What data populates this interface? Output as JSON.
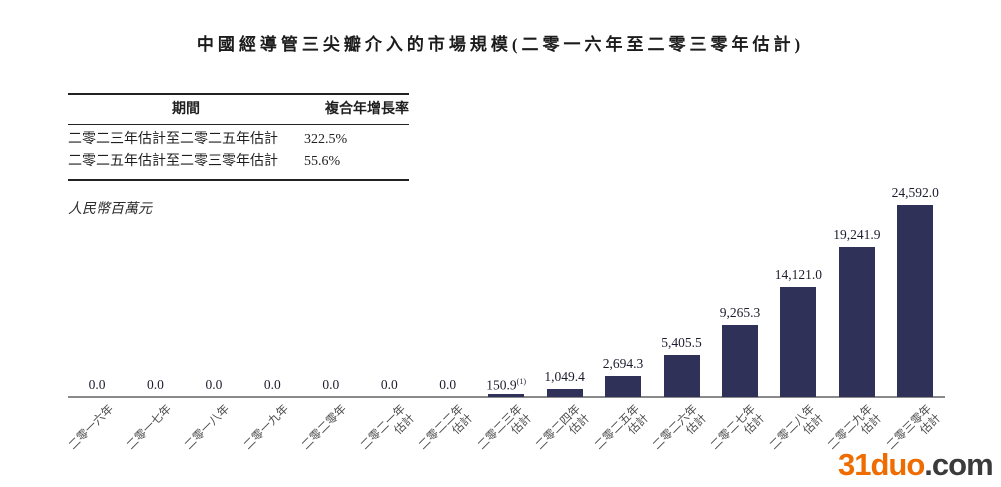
{
  "page": {
    "title": "中國經導管三尖瓣介入的市場規模(二零一六年至二零三零年估計)"
  },
  "cagr_table": {
    "headers": [
      "期間",
      "複合年增長率"
    ],
    "rows": [
      {
        "period": "二零二三年估計至二零二五年估計",
        "cagr": "322.5%"
      },
      {
        "period": "二零二五年估計至二零三零年估計",
        "cagr": "55.6%"
      }
    ]
  },
  "chart_data": {
    "type": "bar",
    "title": "中國經導管三尖瓣介入的市場規模(二零一六年至二零三零年估計)",
    "ylabel": "人民幣百萬元",
    "xlabel": "",
    "ylim": [
      0,
      24592
    ],
    "grid": false,
    "legend": "none",
    "bar_color": "#2f3158",
    "categories": [
      "二零一六年",
      "二零一七年",
      "二零一八年",
      "二零一九年",
      "二零二零年",
      "二零二一年估計",
      "二零二二年估計",
      "二零二三年估計",
      "二零二四年估計",
      "二零二五年估計",
      "二零二六年估計",
      "二零二七年估計",
      "二零二八年估計",
      "二零二九年估計",
      "二零三零年估計"
    ],
    "x_ticks": [
      {
        "year": "二零一六年",
        "suffix": ""
      },
      {
        "year": "二零一七年",
        "suffix": ""
      },
      {
        "year": "二零一八年",
        "suffix": ""
      },
      {
        "year": "二零一九年",
        "suffix": ""
      },
      {
        "year": "二零二零年",
        "suffix": ""
      },
      {
        "year": "二零二一年",
        "suffix": "估計"
      },
      {
        "year": "二零二二年",
        "suffix": "估計"
      },
      {
        "year": "二零二三年",
        "suffix": "估計"
      },
      {
        "year": "二零二四年",
        "suffix": "估計"
      },
      {
        "year": "二零二五年",
        "suffix": "估計"
      },
      {
        "year": "二零二六年",
        "suffix": "估計"
      },
      {
        "year": "二零二七年",
        "suffix": "估計"
      },
      {
        "year": "二零二八年",
        "suffix": "估計"
      },
      {
        "year": "二零二九年",
        "suffix": "估計"
      },
      {
        "year": "二零三零年",
        "suffix": "估計"
      }
    ],
    "values": [
      0.0,
      0.0,
      0.0,
      0.0,
      0.0,
      0.0,
      0.0,
      150.9,
      1049.4,
      2694.3,
      5405.5,
      9265.3,
      14121.0,
      19241.9,
      24592.0
    ],
    "value_labels": [
      "0.0",
      "0.0",
      "0.0",
      "0.0",
      "0.0",
      "0.0",
      "0.0",
      "150.9",
      "1,049.4",
      "2,694.3",
      "5,405.5",
      "9,265.3",
      "14,121.0",
      "19,241.9",
      "24,592.0"
    ],
    "footnote_markers": {
      "7": "(1)"
    }
  },
  "watermark": {
    "brand": "31duo",
    "suffix": ".com",
    "brand_color": "#ee6c00",
    "suffix_color": "#3b3b3b"
  }
}
